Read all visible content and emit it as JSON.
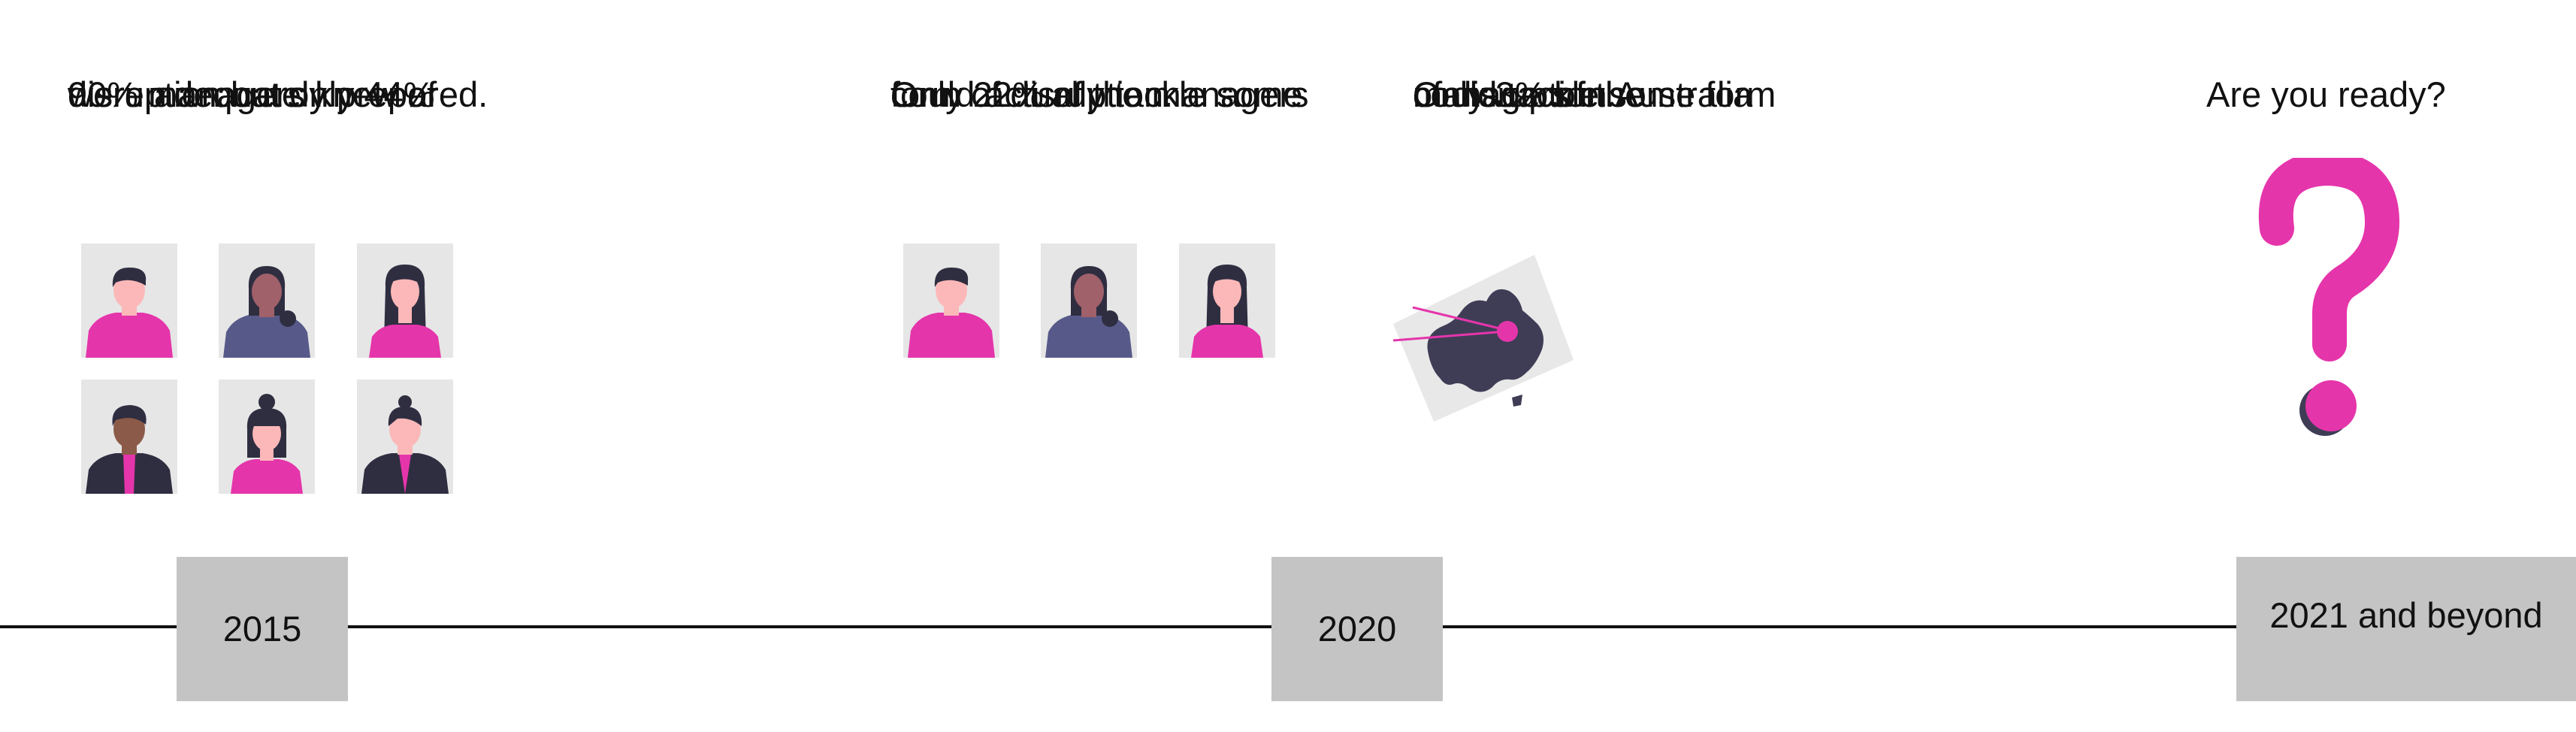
{
  "milestones": [
    {
      "year": "2015",
      "lines": [
        "90% managers knew of",
        "disruption but only 44%",
        "were adequately prepared."
      ]
    },
    {
      "year": "2020",
      "lines": [
        "Only 22% of the managers",
        "could actually tackle some",
        "form of disruption."
      ],
      "lines_b": [
        "Only 3% of the",
        "managers in Australia",
        "could tackle some form",
        "of disruption."
      ]
    },
    {
      "year": "2021 and beyond",
      "lines": [
        "Are you ready?"
      ]
    }
  ],
  "icons": {
    "people": "person-avatar-icon",
    "map": "australia-map-icon",
    "question": "question-mark-icon"
  },
  "colors": {
    "accent": "#e535ab",
    "dark": "#3f3d56",
    "tile": "#e6e6e6",
    "year_box": "#c4c4c4",
    "timeline": "#111111"
  }
}
